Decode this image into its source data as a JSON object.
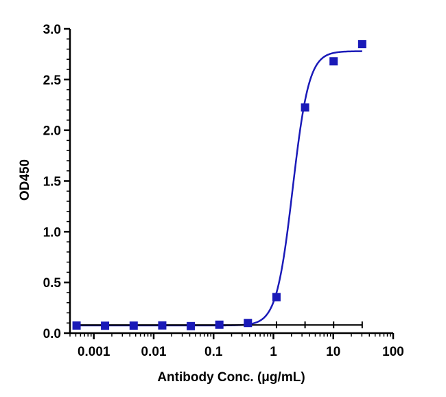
{
  "chart_data": {
    "type": "scatter",
    "title": "",
    "xlabel": "Antibody Conc. (μg/mL)",
    "ylabel": "OD450",
    "x_scale": "log",
    "xlim": [
      0.0004,
      100
    ],
    "ylim": [
      0,
      3.0
    ],
    "x_tick_labels": [
      "0.001",
      "0.01",
      "0.1",
      "1",
      "10",
      "100"
    ],
    "y_tick_labels": [
      "0.0",
      "0.5",
      "1.0",
      "1.5",
      "2.0",
      "2.5",
      "3.0"
    ],
    "grid": false,
    "legend": "none",
    "series": [
      {
        "marker": "square",
        "color": "#1a1ab8",
        "x": [
          0.000515,
          0.00154,
          0.00463,
          0.0139,
          0.0417,
          0.125,
          0.375,
          1.125,
          3.375,
          10.125,
          30.375
        ],
        "y": [
          0.075,
          0.073,
          0.074,
          0.076,
          0.069,
          0.083,
          0.1,
          0.355,
          2.225,
          2.68,
          2.85
        ]
      }
    ],
    "fit_curve": {
      "type": "4PL",
      "color": "#1a1ab8",
      "bottom": 0.075,
      "top": 2.78,
      "ec50": 2.1,
      "hill": 3.2
    }
  }
}
